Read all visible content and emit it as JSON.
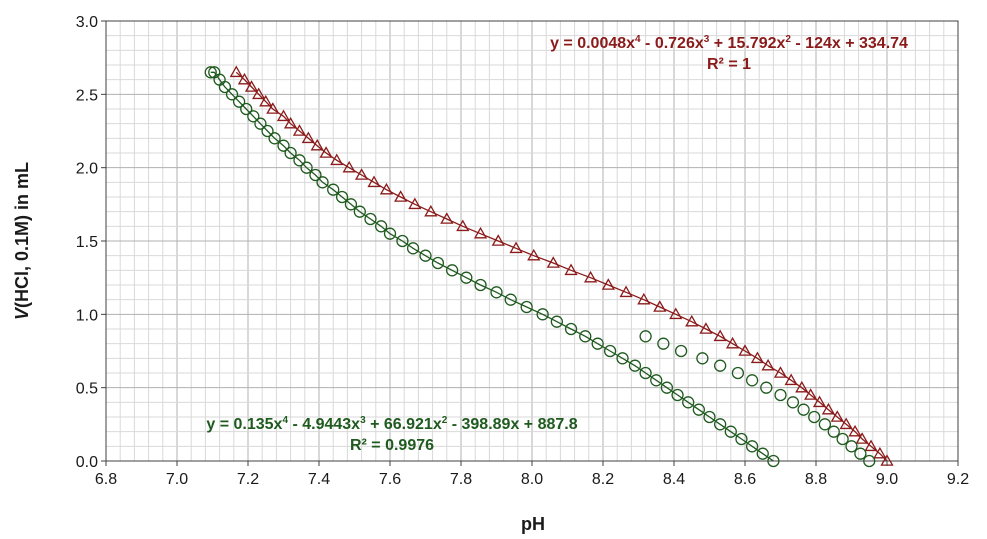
{
  "colors": {
    "red_series": "#8b1a1a",
    "green_series": "#1f5a1f",
    "minor_grid": "#d9d9d9",
    "major_grid": "#b0b0b0",
    "axis": "#404040"
  },
  "chart_data": {
    "type": "scatter",
    "xlabel": "pH",
    "ylabel_italic": "V",
    "ylabel_rest": "(HCl, 0.1M) in mL",
    "xlim": [
      6.8,
      9.2
    ],
    "ylim": [
      0.0,
      3.0
    ],
    "x_ticks": [
      "6.8",
      "7.0",
      "7.2",
      "7.4",
      "7.6",
      "7.8",
      "8.0",
      "8.2",
      "8.4",
      "8.6",
      "8.8",
      "9.0",
      "9.2"
    ],
    "y_ticks": [
      "0.0",
      "0.5",
      "1.0",
      "1.5",
      "2.0",
      "2.5",
      "3.0"
    ],
    "grid": true,
    "series": [
      {
        "marker": "triangle",
        "color": "#8b1a1a",
        "equation": {
          "prefix": "y = 0.0048x",
          "parts": [
            {
              "sup": "4",
              "text": " - 0.726x"
            },
            {
              "sup": "3",
              "text": " + 15.792x"
            },
            {
              "sup": "2",
              "text": " - 124x + 334.74"
            }
          ]
        },
        "r2": "R² = 1",
        "points": [
          [
            7.167,
            2.65
          ],
          [
            7.19,
            2.6
          ],
          [
            7.21,
            2.55
          ],
          [
            7.23,
            2.5
          ],
          [
            7.25,
            2.45
          ],
          [
            7.27,
            2.4
          ],
          [
            7.3,
            2.35
          ],
          [
            7.32,
            2.3
          ],
          [
            7.345,
            2.25
          ],
          [
            7.37,
            2.2
          ],
          [
            7.395,
            2.15
          ],
          [
            7.42,
            2.1
          ],
          [
            7.45,
            2.05
          ],
          [
            7.485,
            2.0
          ],
          [
            7.52,
            1.95
          ],
          [
            7.555,
            1.9
          ],
          [
            7.59,
            1.85
          ],
          [
            7.63,
            1.8
          ],
          [
            7.67,
            1.75
          ],
          [
            7.715,
            1.7
          ],
          [
            7.76,
            1.65
          ],
          [
            7.805,
            1.6
          ],
          [
            7.855,
            1.55
          ],
          [
            7.905,
            1.5
          ],
          [
            7.955,
            1.45
          ],
          [
            8.005,
            1.4
          ],
          [
            8.06,
            1.35
          ],
          [
            8.11,
            1.3
          ],
          [
            8.165,
            1.25
          ],
          [
            8.215,
            1.2
          ],
          [
            8.265,
            1.15
          ],
          [
            8.315,
            1.1
          ],
          [
            8.36,
            1.05
          ],
          [
            8.405,
            1.0
          ],
          [
            8.45,
            0.95
          ],
          [
            8.49,
            0.9
          ],
          [
            8.53,
            0.85
          ],
          [
            8.565,
            0.8
          ],
          [
            8.6,
            0.75
          ],
          [
            8.635,
            0.7
          ],
          [
            8.665,
            0.65
          ],
          [
            8.7,
            0.6
          ],
          [
            8.73,
            0.55
          ],
          [
            8.76,
            0.5
          ],
          [
            8.785,
            0.45
          ],
          [
            8.81,
            0.4
          ],
          [
            8.835,
            0.35
          ],
          [
            8.86,
            0.3
          ],
          [
            8.885,
            0.25
          ],
          [
            8.91,
            0.2
          ],
          [
            8.93,
            0.15
          ],
          [
            8.955,
            0.1
          ],
          [
            8.98,
            0.05
          ],
          [
            9.0,
            0.0
          ]
        ]
      },
      {
        "marker": "circle",
        "color": "#1f5a1f",
        "equation": {
          "prefix": "y = 0.135x",
          "parts": [
            {
              "sup": "4",
              "text": " - 4.9443x"
            },
            {
              "sup": "3",
              "text": " + 66.921x"
            },
            {
              "sup": "2",
              "text": " - 398.89x + 887.8"
            }
          ]
        },
        "r2": "R² = 0.9976",
        "points": [
          [
            7.095,
            2.65
          ],
          [
            7.105,
            2.65
          ],
          [
            7.12,
            2.6
          ],
          [
            7.135,
            2.55
          ],
          [
            7.155,
            2.5
          ],
          [
            7.175,
            2.45
          ],
          [
            7.195,
            2.4
          ],
          [
            7.215,
            2.35
          ],
          [
            7.235,
            2.3
          ],
          [
            7.255,
            2.25
          ],
          [
            7.275,
            2.2
          ],
          [
            7.3,
            2.15
          ],
          [
            7.32,
            2.1
          ],
          [
            7.345,
            2.05
          ],
          [
            7.365,
            2.0
          ],
          [
            7.39,
            1.95
          ],
          [
            7.41,
            1.9
          ],
          [
            7.44,
            1.85
          ],
          [
            7.465,
            1.8
          ],
          [
            7.49,
            1.75
          ],
          [
            7.515,
            1.7
          ],
          [
            7.545,
            1.65
          ],
          [
            7.575,
            1.6
          ],
          [
            7.6,
            1.55
          ],
          [
            7.635,
            1.5
          ],
          [
            7.665,
            1.45
          ],
          [
            7.7,
            1.4
          ],
          [
            7.735,
            1.35
          ],
          [
            7.775,
            1.3
          ],
          [
            7.815,
            1.25
          ],
          [
            7.855,
            1.2
          ],
          [
            7.9,
            1.15
          ],
          [
            7.94,
            1.1
          ],
          [
            7.985,
            1.05
          ],
          [
            8.03,
            1.0
          ],
          [
            8.07,
            0.95
          ],
          [
            8.11,
            0.9
          ],
          [
            8.15,
            0.85
          ],
          [
            8.185,
            0.8
          ],
          [
            8.22,
            0.75
          ],
          [
            8.255,
            0.7
          ],
          [
            8.29,
            0.65
          ],
          [
            8.32,
            0.6
          ],
          [
            8.35,
            0.55
          ],
          [
            8.38,
            0.5
          ],
          [
            8.41,
            0.45
          ],
          [
            8.44,
            0.4
          ],
          [
            8.47,
            0.35
          ],
          [
            8.5,
            0.3
          ],
          [
            8.53,
            0.25
          ],
          [
            8.56,
            0.2
          ],
          [
            8.59,
            0.15
          ],
          [
            8.62,
            0.1
          ],
          [
            8.65,
            0.05
          ],
          [
            8.68,
            0.0
          ],
          [
            8.32,
            0.85
          ],
          [
            8.37,
            0.8
          ],
          [
            8.42,
            0.75
          ],
          [
            8.48,
            0.7
          ],
          [
            8.53,
            0.65
          ],
          [
            8.58,
            0.6
          ],
          [
            8.62,
            0.55
          ],
          [
            8.66,
            0.5
          ],
          [
            8.7,
            0.45
          ],
          [
            8.735,
            0.4
          ],
          [
            8.765,
            0.35
          ],
          [
            8.795,
            0.3
          ],
          [
            8.825,
            0.25
          ],
          [
            8.85,
            0.2
          ],
          [
            8.875,
            0.15
          ],
          [
            8.9,
            0.1
          ],
          [
            8.925,
            0.05
          ],
          [
            8.95,
            0.0
          ]
        ]
      }
    ]
  }
}
